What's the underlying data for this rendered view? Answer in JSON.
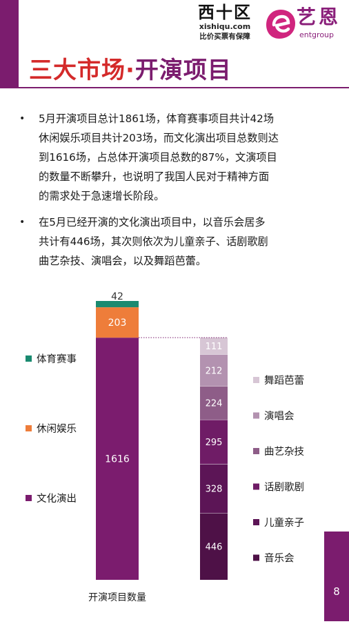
{
  "header": {
    "logo_xishiqu": {
      "name": "西十区",
      "url": "xishiqu.com",
      "slogan": "比价买票有保障"
    },
    "logo_ent": {
      "name_cn": "艺恩",
      "name_en": "entgroup"
    },
    "title_part1": "三大市场·",
    "title_part2": "开演项目"
  },
  "body": {
    "bullets": [
      {
        "lines": [
          "5月开演项目总计1861场，体育赛事项目共计42场",
          "休闲娱乐项目共计203场，而文化演出项目总数则达",
          "到1616场，占总体开演项目总数的87%，文演项目",
          "的数量不断攀升，也说明了我国人民对于精神方面",
          "的需求处于急速增长阶段。"
        ]
      },
      {
        "lines": [
          "在5月已经开演的文化演出项目中，以音乐会居多",
          "共计有446场，其次则依次为儿童亲子、话剧歌剧",
          "曲艺杂技、演唱会，以及舞蹈芭蕾。"
        ]
      }
    ]
  },
  "chart_data": {
    "type": "bar",
    "stacked": true,
    "xlabel": "开演项目数量",
    "main_bar": {
      "series": [
        {
          "name": "文化演出",
          "value": 1616,
          "color": "#7b1c6e"
        },
        {
          "name": "休闲娱乐",
          "value": 203,
          "color": "#ee7d3a"
        },
        {
          "name": "体育赛事",
          "value": 42,
          "color": "#1a8a70"
        }
      ]
    },
    "breakdown_bar": {
      "series": [
        {
          "name": "音乐会",
          "value": 446,
          "color": "#4e1147"
        },
        {
          "name": "儿童亲子",
          "value": 328,
          "color": "#5c1556"
        },
        {
          "name": "话剧歌剧",
          "value": 295,
          "color": "#6f1c66"
        },
        {
          "name": "曲艺杂技",
          "value": 224,
          "color": "#8e5d88"
        },
        {
          "name": "演唱会",
          "value": 212,
          "color": "#b392b0"
        },
        {
          "name": "舞蹈芭蕾",
          "value": 111,
          "color": "#d7c6d5"
        }
      ]
    },
    "legend_left": [
      "体育赛事",
      "休闲娱乐",
      "文化演出"
    ],
    "legend_right": [
      "舞蹈芭蕾",
      "演唱会",
      "曲艺杂技",
      "话剧歌剧",
      "儿童亲子",
      "音乐会"
    ]
  },
  "footer": {
    "page_number": "8"
  }
}
